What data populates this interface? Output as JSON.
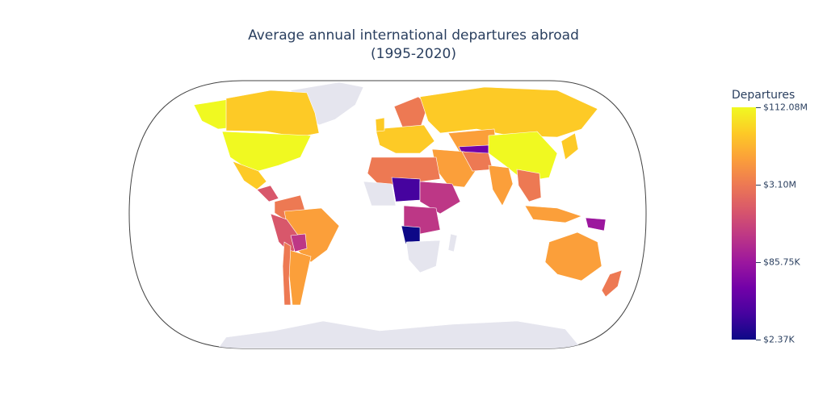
{
  "title": {
    "line1": "Average annual international departures abroad",
    "line2": "(1995-2020)"
  },
  "legend": {
    "title": "Departures",
    "ticks": [
      "$112.08M",
      "$3.10M",
      "$85.75K",
      "$2.37K"
    ]
  },
  "colors": {
    "no_data": "#e5e5ee",
    "scale": [
      "#0d0887",
      "#46039f",
      "#7201a8",
      "#9c179e",
      "#bd3786",
      "#d8576b",
      "#ed7953",
      "#fb9f3a",
      "#fdca26",
      "#f0f921"
    ]
  }
}
